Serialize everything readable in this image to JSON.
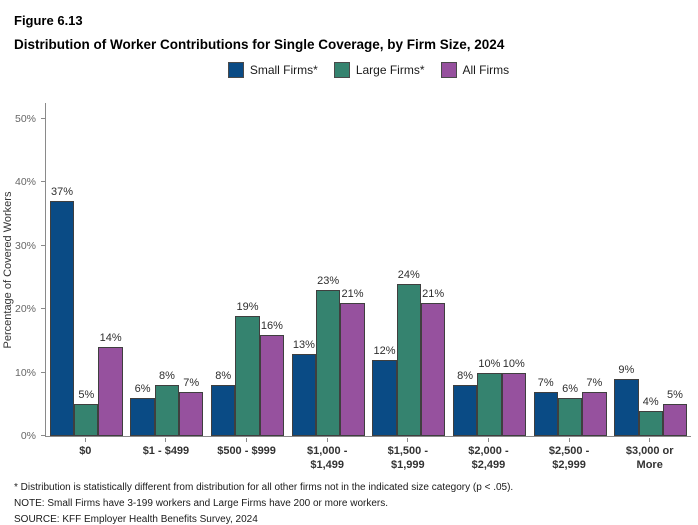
{
  "header": {
    "figure_label": "Figure 6.13",
    "title": "Distribution of Worker Contributions for Single Coverage, by Firm Size, 2024"
  },
  "chart_data": {
    "type": "bar",
    "title": "Distribution of Worker Contributions for Single Coverage, by Firm Size, 2024",
    "categories": [
      "$0",
      "$1 - $499",
      "$500 - $999",
      "$1,000 -\n$1,499",
      "$1,500 -\n$1,999",
      "$2,000 -\n$2,499",
      "$2,500 -\n$2,999",
      "$3,000 or\nMore"
    ],
    "series": [
      {
        "name": "Small Firms*",
        "color": "#0a4b85",
        "values": [
          37,
          6,
          8,
          13,
          12,
          8,
          7,
          9
        ]
      },
      {
        "name": "Large Firms*",
        "color": "#35836f",
        "values": [
          5,
          8,
          19,
          23,
          24,
          10,
          6,
          4
        ]
      },
      {
        "name": "All Firms",
        "color": "#96519e",
        "values": [
          14,
          7,
          16,
          21,
          21,
          10,
          7,
          5
        ]
      }
    ],
    "xlabel": "",
    "ylabel": "Percentage of Covered Workers",
    "y_ticks": [
      "0%",
      "10%",
      "20%",
      "30%",
      "40%",
      "50%"
    ],
    "ylim": [
      0,
      52.5
    ],
    "value_suffix": "%",
    "grid": false,
    "legend_position": "top"
  },
  "footnotes": {
    "asterisk": "* Distribution is statistically different from distribution for all other firms not in the indicated size category (p < .05).",
    "note": "NOTE: Small Firms have 3-199 workers and Large Firms have 200 or more workers.",
    "source": "SOURCE: KFF Employer Health Benefits Survey, 2024"
  }
}
